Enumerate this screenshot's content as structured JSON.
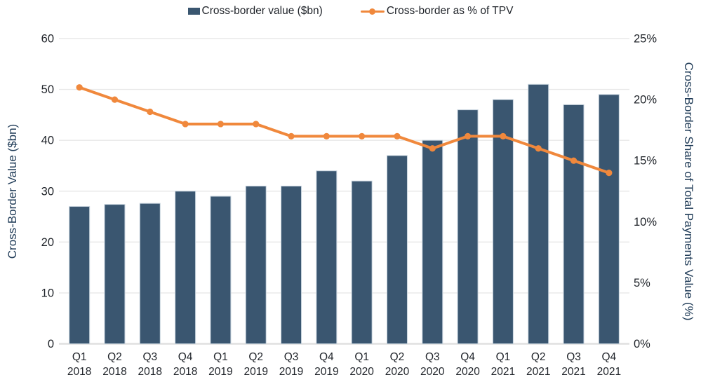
{
  "legend": {
    "items": [
      {
        "label": "Cross-border value ($bn)",
        "color": "#3a5670",
        "marker": "square"
      },
      {
        "label": "Cross-border as % of TPV",
        "color": "#f0883c",
        "marker": "line-dot"
      }
    ]
  },
  "chart_data": {
    "type": "combo-bar-line",
    "title": "",
    "categories": [
      "Q1 2018",
      "Q2 2018",
      "Q3 2018",
      "Q4 2018",
      "Q1 2019",
      "Q2 2019",
      "Q3 2019",
      "Q4 2019",
      "Q1 2020",
      "Q2 2020",
      "Q3 2020",
      "Q4 2020",
      "Q1 2021",
      "Q2 2021",
      "Q3 2021",
      "Q4 2021"
    ],
    "category_lines": [
      {
        "quarter": "Q1",
        "year": "2018"
      },
      {
        "quarter": "Q2",
        "year": "2018"
      },
      {
        "quarter": "Q3",
        "year": "2018"
      },
      {
        "quarter": "Q4",
        "year": "2018"
      },
      {
        "quarter": "Q1",
        "year": "2019"
      },
      {
        "quarter": "Q2",
        "year": "2019"
      },
      {
        "quarter": "Q3",
        "year": "2019"
      },
      {
        "quarter": "Q4",
        "year": "2019"
      },
      {
        "quarter": "Q1",
        "year": "2020"
      },
      {
        "quarter": "Q2",
        "year": "2020"
      },
      {
        "quarter": "Q3",
        "year": "2020"
      },
      {
        "quarter": "Q4",
        "year": "2020"
      },
      {
        "quarter": "Q1",
        "year": "2021"
      },
      {
        "quarter": "Q2",
        "year": "2021"
      },
      {
        "quarter": "Q3",
        "year": "2021"
      },
      {
        "quarter": "Q4",
        "year": "2021"
      }
    ],
    "series": [
      {
        "name": "Cross-border value ($bn)",
        "type": "bar",
        "axis": "left",
        "color": "#3a5670",
        "values": [
          27,
          27.4,
          27.6,
          30,
          29,
          31,
          31,
          34,
          32,
          37,
          40,
          46,
          48,
          51,
          47,
          49
        ]
      },
      {
        "name": "Cross-border as % of TPV",
        "type": "line",
        "axis": "right",
        "color": "#f0883c",
        "values": [
          21,
          20,
          19,
          18,
          18,
          18,
          17,
          17,
          17,
          17,
          16,
          17,
          17,
          16,
          15,
          14
        ]
      }
    ],
    "left_axis": {
      "title": "Cross-Border Value ($bn)",
      "min": 0,
      "max": 60,
      "tick_step": 10,
      "tick_labels": [
        "0",
        "10",
        "20",
        "30",
        "40",
        "50",
        "60"
      ]
    },
    "right_axis": {
      "title": "Cross-Border Share of Total Payments Value (%)",
      "min": 0,
      "max": 25,
      "tick_step": 5,
      "tick_labels": [
        "0%",
        "5%",
        "10%",
        "15%",
        "20%",
        "25%"
      ]
    },
    "grid": {
      "horizontal": true
    }
  },
  "colors": {
    "background": "#ffffff",
    "grid_line": "#e8e8e8",
    "axis_line": "#e0e0e0",
    "bar_stroke": "#c8d4de",
    "tick_text": "#1f2329",
    "axis_title_text": "#1e3a56"
  }
}
